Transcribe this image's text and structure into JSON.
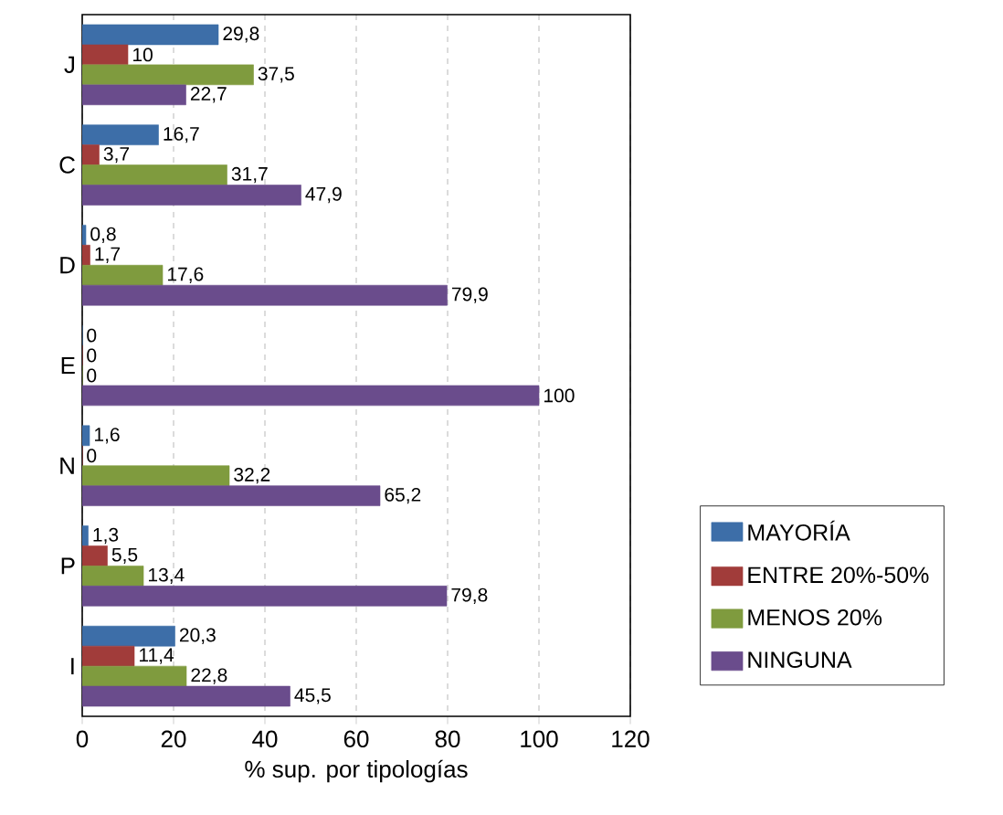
{
  "chart_data": {
    "type": "bar",
    "orientation": "horizontal",
    "xlabel": "% sup. por tipologías",
    "categories": [
      "J",
      "C",
      "D",
      "E",
      "N",
      "P",
      "I"
    ],
    "series": [
      {
        "name": "MAYORÍA",
        "color": "#3d6ea8",
        "values": [
          29.8,
          16.7,
          0.8,
          0,
          1.6,
          1.3,
          20.3
        ],
        "value_labels": [
          "29,8",
          "16,7",
          "0,8",
          "0",
          "1,6",
          "1,3",
          "20,3"
        ]
      },
      {
        "name": "ENTRE 20%-50%",
        "color": "#a13c3a",
        "values": [
          10,
          3.7,
          1.7,
          0,
          0,
          5.5,
          11.4
        ],
        "value_labels": [
          "10",
          "3,7",
          "1,7",
          "0",
          "0",
          "5,5",
          "11,4"
        ]
      },
      {
        "name": "MENOS 20%",
        "color": "#7f9b3e",
        "values": [
          37.5,
          31.7,
          17.6,
          0,
          32.2,
          13.4,
          22.8
        ],
        "value_labels": [
          "37,5",
          "31,7",
          "17,6",
          "0",
          "32,2",
          "13,4",
          "22,8"
        ]
      },
      {
        "name": "NINGUNA",
        "color": "#6a4c8c",
        "values": [
          22.7,
          47.9,
          79.9,
          100,
          65.2,
          79.8,
          45.5
        ],
        "value_labels": [
          "22,7",
          "47,9",
          "79,9",
          "100",
          "65,2",
          "79,8",
          "45,5"
        ]
      }
    ],
    "xlim": [
      0,
      120
    ],
    "xticks": [
      0,
      20,
      40,
      60,
      80,
      100,
      120
    ],
    "grid": "x",
    "legend": "right"
  }
}
